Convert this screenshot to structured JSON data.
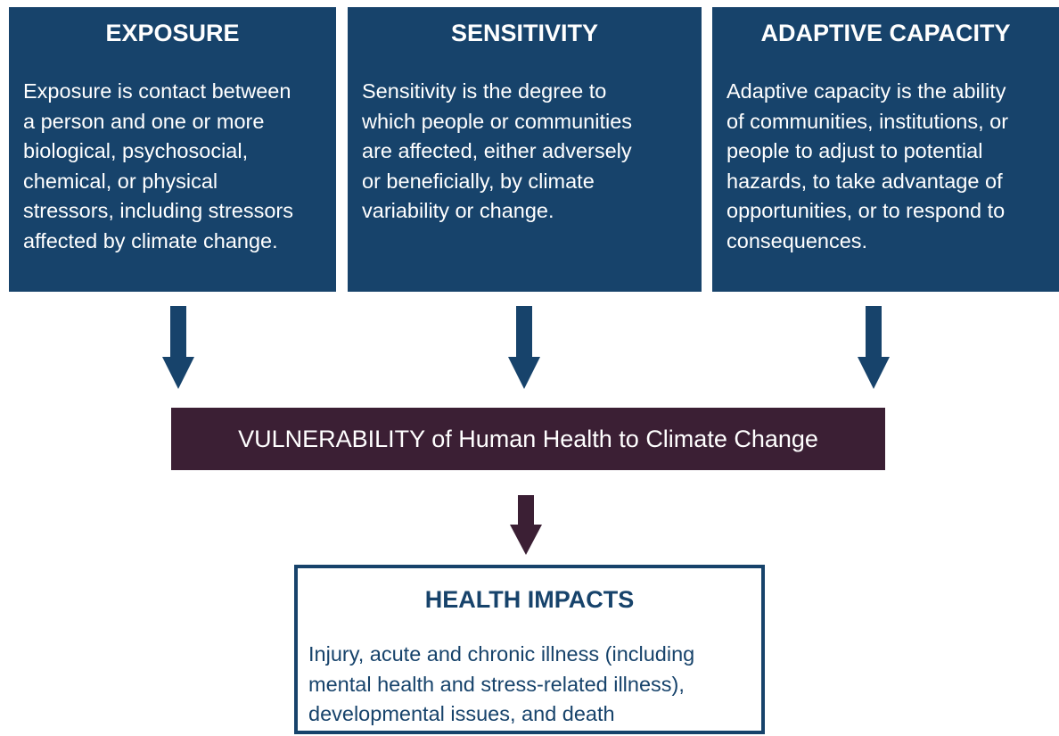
{
  "boxes": [
    {
      "title": "EXPOSURE",
      "lines": [
        "Exposure is contact between",
        "a person and one or more",
        "biological, psychosocial,",
        "chemical, or physical",
        "stressors, including stressors",
        "affected by climate change."
      ]
    },
    {
      "title": "SENSITIVITY",
      "lines": [
        "Sensitivity is the degree to",
        "which people or communities",
        "are affected, either adversely",
        "or beneficially, by climate",
        "variability or change."
      ]
    },
    {
      "title": "ADAPTIVE CAPACITY",
      "lines": [
        "Adaptive capacity is the ability",
        "of communities, institutions, or",
        "people to adjust to potential",
        "hazards, to take advantage of",
        "opportunities, or to respond to",
        "consequences."
      ]
    }
  ],
  "vulnerability": {
    "lead": "VULNERABILITY",
    "rest": "of Human Health to Climate Change"
  },
  "health_impacts": {
    "title": "HEALTH IMPACTS",
    "lines": [
      "Injury, acute and chronic illness (including",
      "mental health and stress-related illness),",
      "developmental issues, and death"
    ]
  }
}
